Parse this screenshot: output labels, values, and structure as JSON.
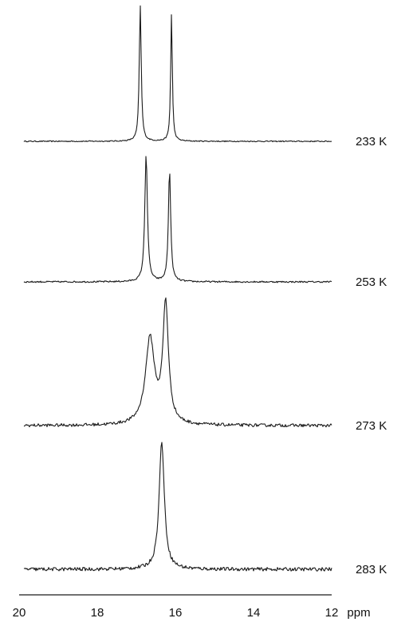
{
  "chart_data": {
    "type": "line",
    "title": "",
    "xlabel": "ppm",
    "ylabel": "",
    "xlim": [
      20,
      12
    ],
    "x_reversed": true,
    "grid": false,
    "xticks": [
      "20",
      "18",
      "16",
      "14",
      "12"
    ],
    "series": [
      {
        "name": "233 K",
        "peaks": [
          {
            "x": 16.9,
            "height": 1.0,
            "width": 0.06
          },
          {
            "x": 16.1,
            "height": 0.94,
            "width": 0.05
          }
        ],
        "noise": 0.004
      },
      {
        "name": "253 K",
        "peaks": [
          {
            "x": 16.75,
            "height": 1.0,
            "width": 0.08
          },
          {
            "x": 16.15,
            "height": 0.88,
            "width": 0.07
          }
        ],
        "noise": 0.006
      },
      {
        "name": "273 K",
        "peaks": [
          {
            "x": 16.65,
            "height": 0.67,
            "width": 0.28
          },
          {
            "x": 16.25,
            "height": 0.93,
            "width": 0.17
          }
        ],
        "noise": 0.012
      },
      {
        "name": "283 K",
        "peaks": [
          {
            "x": 16.35,
            "height": 1.0,
            "width": 0.16
          }
        ],
        "noise": 0.014
      }
    ]
  }
}
